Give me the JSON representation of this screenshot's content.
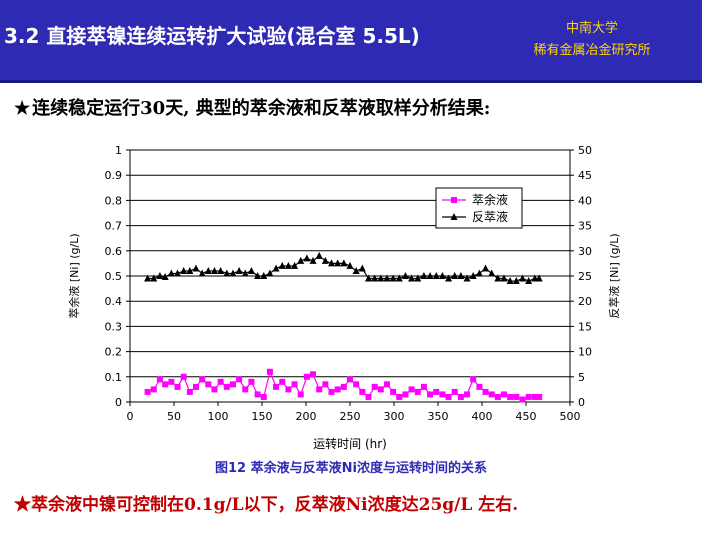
{
  "header": {
    "title": "3.2 直接萃镍连续运转扩大试验(混合室 5.5L)",
    "org_line1": "中南大学",
    "org_line2": "稀有金属冶金研究所"
  },
  "bullet_top": {
    "star": "★",
    "text": "连续稳定运行30天, 典型的萃余液和反萃液取样分析结果:"
  },
  "caption": "图12 萃余液与反萃液Ni浓度与运转时间的关系",
  "bullet_bottom": {
    "star": "★",
    "text": "萃余液中镍可控制在0.1g/L以下，反萃液Ni浓度达25g/L 左右."
  },
  "colors": {
    "header_bg": "#2e2ab3",
    "org_text": "#ffd700",
    "raffinate": "#ff00ff",
    "strip": "#000000",
    "caption": "#2e2ab3",
    "bullet_bottom": "#c00000"
  },
  "chart_data": {
    "type": "line",
    "xlabel": "运转时间 (hr)",
    "ylabel_left": "萃余液 [Ni] (g/L)",
    "ylabel_right": "反萃液 [Ni] (g/L)",
    "xlim": [
      0,
      500
    ],
    "ylim_left": [
      0,
      1
    ],
    "ylim_right": [
      0,
      50
    ],
    "x_ticks": [
      "0",
      "50",
      "100",
      "150",
      "200",
      "250",
      "300",
      "350",
      "400",
      "450",
      "500"
    ],
    "y_left_ticks": [
      "0",
      "0.1",
      "0.2",
      "0.3",
      "0.4",
      "0.5",
      "0.6",
      "0.7",
      "0.8",
      "0.9",
      "1"
    ],
    "y_right_ticks": [
      "0",
      "5",
      "10",
      "15",
      "20",
      "25",
      "30",
      "35",
      "40",
      "45",
      "50"
    ],
    "grid": "horizontal",
    "legend_position": "top-right",
    "series": [
      {
        "name": "萃余液",
        "axis": "left",
        "marker": "square",
        "x": [
          20,
          27,
          34,
          40,
          47,
          54,
          61,
          68,
          75,
          82,
          89,
          96,
          103,
          110,
          117,
          124,
          131,
          138,
          145,
          152,
          159,
          166,
          173,
          180,
          187,
          194,
          201,
          208,
          215,
          222,
          229,
          236,
          243,
          250,
          257,
          264,
          271,
          278,
          285,
          292,
          299,
          306,
          313,
          320,
          327,
          334,
          341,
          348,
          355,
          362,
          369,
          376,
          383,
          390,
          397,
          404,
          411,
          418,
          425,
          432,
          439,
          446,
          453,
          460,
          465
        ],
        "y": [
          0.04,
          0.05,
          0.09,
          0.07,
          0.08,
          0.06,
          0.1,
          0.04,
          0.06,
          0.09,
          0.07,
          0.05,
          0.08,
          0.06,
          0.07,
          0.09,
          0.05,
          0.08,
          0.03,
          0.02,
          0.12,
          0.06,
          0.08,
          0.05,
          0.07,
          0.03,
          0.1,
          0.11,
          0.05,
          0.07,
          0.04,
          0.05,
          0.06,
          0.09,
          0.07,
          0.04,
          0.02,
          0.06,
          0.05,
          0.07,
          0.04,
          0.02,
          0.03,
          0.05,
          0.04,
          0.06,
          0.03,
          0.04,
          0.03,
          0.02,
          0.04,
          0.02,
          0.03,
          0.09,
          0.06,
          0.04,
          0.03,
          0.02,
          0.03,
          0.02,
          0.02,
          0.01,
          0.02,
          0.02,
          0.02
        ]
      },
      {
        "name": "反萃液",
        "axis": "right",
        "marker": "triangle",
        "x": [
          20,
          27,
          34,
          40,
          47,
          54,
          61,
          68,
          75,
          82,
          89,
          96,
          103,
          110,
          117,
          124,
          131,
          138,
          145,
          152,
          159,
          166,
          173,
          180,
          187,
          194,
          201,
          208,
          215,
          222,
          229,
          236,
          243,
          250,
          257,
          264,
          271,
          278,
          285,
          292,
          299,
          306,
          313,
          320,
          327,
          334,
          341,
          348,
          355,
          362,
          369,
          376,
          383,
          390,
          397,
          404,
          411,
          418,
          425,
          432,
          439,
          446,
          453,
          460,
          465
        ],
        "y": [
          24.5,
          24.5,
          25,
          24.8,
          25.5,
          25.5,
          26,
          26,
          26.5,
          25.5,
          26,
          26,
          26,
          25.5,
          25.5,
          26,
          25.5,
          26,
          25,
          25,
          25.5,
          26.5,
          27,
          27,
          27,
          28,
          28.5,
          28,
          29,
          28,
          27.5,
          27.5,
          27.5,
          27,
          26,
          26.5,
          24.5,
          24.5,
          24.5,
          24.5,
          24.5,
          24.5,
          25,
          24.5,
          24.5,
          25,
          25,
          25,
          25,
          24.5,
          25,
          25,
          24.5,
          25,
          25.5,
          26.5,
          25.5,
          24.5,
          24.5,
          24,
          24,
          24.5,
          24,
          24.5,
          24.5
        ]
      }
    ]
  }
}
